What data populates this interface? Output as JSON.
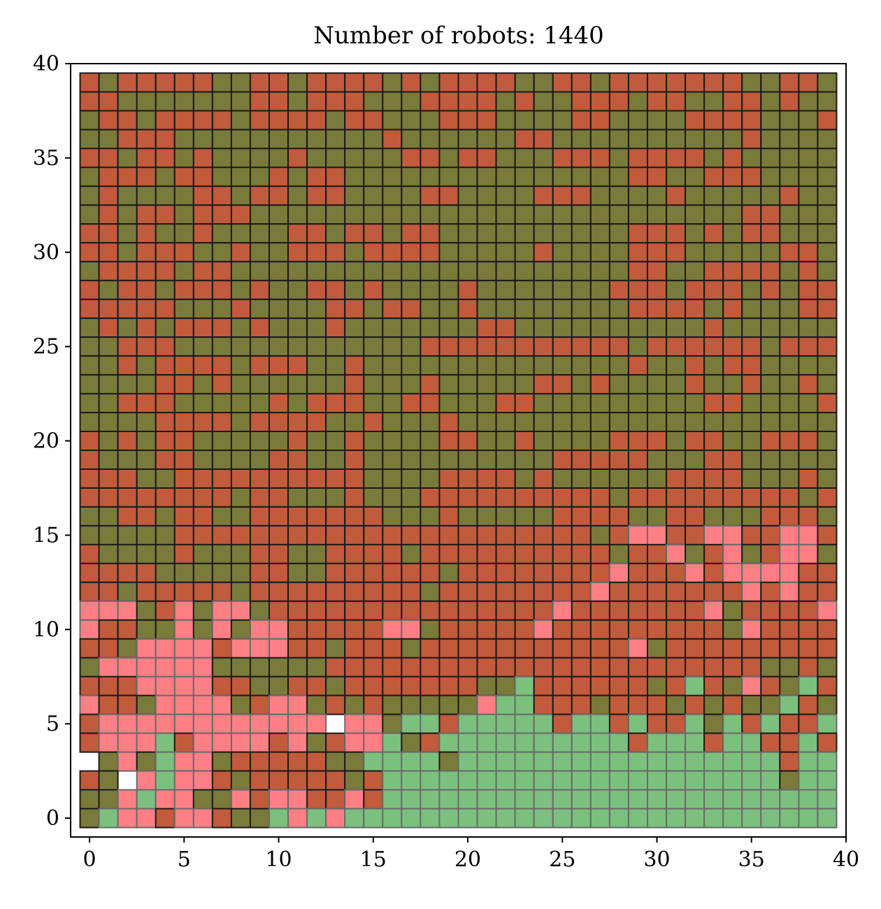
{
  "chart_data": {
    "type": "heatmap",
    "title": "Number of robots: 1440",
    "xlabel": "",
    "ylabel": "",
    "xlim": [
      -1,
      40
    ],
    "ylim": [
      -1,
      40
    ],
    "xticks": [
      0,
      5,
      10,
      15,
      20,
      25,
      30,
      35,
      40
    ],
    "yticks": [
      0,
      5,
      10,
      15,
      20,
      25,
      30,
      35,
      40
    ],
    "grid": false,
    "cell_size": 1,
    "state_legend": {
      "O": "olive (dark green) cell",
      "R": "red-brown cell",
      "P": "pink cell",
      "G": "light green cell",
      ".": "empty (white)"
    },
    "colors": {
      "O": "#7a7a3a",
      "R": "#c25a3c",
      "P": "#ff7f84",
      "G": "#7cc07e",
      "edge": "#1a1a1a",
      "edge_light": "#6a6a6a"
    },
    "rows_top_to_bottom_y39_to_y0": [
      "RORRRRROORRORRRRORORRRROORRORRRRRRROORRO",
      "RROOOOOOORRORRROOORRRROROORRRORROORROROO",
      "ORRORRRRORRRRORROOORRROOOORROOOORRRROOOR",
      "OORRROOOOOOOOOOOROOOOOORROOOOOOOOOOROOOO",
      "RRORROROOOOROOOOORRORROOORRRORRRROROOOOO",
      "ORRRORROOORORROOOOOOOOOOOOOOORROORRROOOO",
      "OROOOORRORRORROOOORROOOORRROOOOROOOOOROO",
      "ORORRORRROOOOOOOOOOOOOOOOOOOOOOOOOORROOO",
      "RROROOROOOORRORRORROOOOOOOOOORRRORORROOO",
      "RRORRROOROORRRORRRROOOOOROOOORRROOOOORRO",
      "ORRRRORROOOOOOOOOOOOOOOOOOOOORROORRRRORO",
      "RORRORRROROORROROOOOROOOOOOORRRORRRORORR",
      "RRRRROOOROOOORRORROOROOOOOOOORRRROROOORR",
      "ORORORRROROOOROOOOOOORROOOOOOOOOOROOOOOO",
      "OORRROOOOOOOOOOOOORRRRRRRRRRRORRRRRRORRR",
      "OORORRRRORRROOROOOOOOOOOOOOOOROORORROOOO",
      "OOOORROROOOOOOROOOROOOOORROROOOOROOROORO",
      "OORRROOOOORORRROORROOORROOOOOOOOORROOOOR",
      "OOOORRRRORRRROOROOOROOOOOOOOOOOOOOOOOOOO",
      "RORORROOOOOROOROOOORROOROOOORRRORROORRRO",
      "ROOORROOOORROOROOOOOOOOOORRRRROOORROOOOO",
      "RRROORRRRRRRRRROOOORRRROROOOOOORRRROOORO",
      "RRRRRRRRORROOOROOORRRRRRRRRRORRRRRRRRROR",
      "OORRORROORRRRRRROOOROOOOORRRROORROOORRRO",
      "OOOOORRRRRRRRRRRRRRRRRRRRRRORPPRRPPRRPPR",
      "ROOOOROOORROORRRRORRRRRRRRRRORRPORPORPPO",
      "RRRROOOOORROORRRRRRORRRRRRRRPRRRPRPPPPRR",
      "RRORRRRRORRRRRRRRRORRRRRRRRPRRRRRRRPRPRR",
      "PPPORPOPPORRRRRRRRRRRRRRRPRRRRRRRPORRRRP",
      "PRROOPOPOPPRRRRRPPORRRRRPRRRRRRRRROPRRRR",
      "RROPPPPRPPPRRORRRORRRRRRRRRRRPORRRRRRRRR",
      "OPPPPPPOOOOOORRRRRRRRRRRRRRRRRRRRRRROORO",
      "RRRPPPPRROORRORRRRRRROOGRRRRRRORGROPROGR",
      "PRROPPPPORPPOROROOOOOPGGRRRORRROROROOGRO",
      "RPPPPPPPPPPPP.PPOGGRGGGGGRGGRGRRGOGRGRRG",
      "RPPPGRPPPPRPORPPGORGGGGGGGGGGRGGGRGGRRGR",
      ".OPOGPPORRRRROOGGGGOGGGGGGGGGGGGGGGGGRGG",
      "RO.PGPPRORRRRRORGGGGGGGGGGGGGGGGGGGGGOGG",
      "OOPGPPOOPRPPRRPRGGGGGGGGGGGGGGGGGGGGGGGG",
      "OGPPRPPROOGPGPGGGGGGGGGGGGGGGGGGGGGGGGGG"
    ]
  }
}
